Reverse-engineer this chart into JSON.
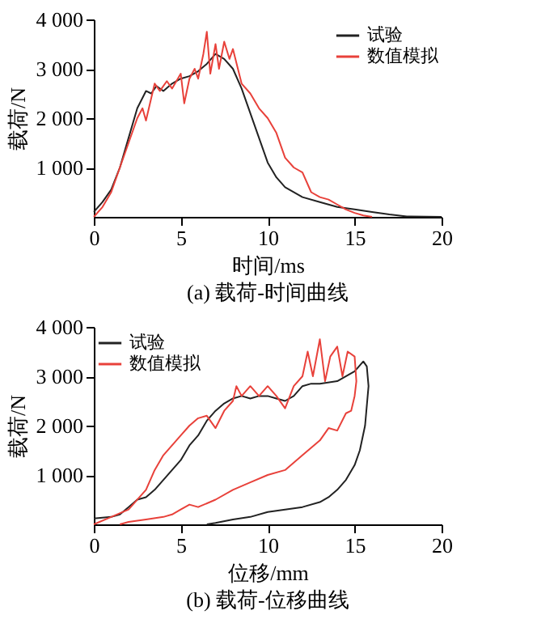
{
  "chart_data": [
    {
      "type": "line",
      "title": "(a) 载荷-时间曲线",
      "xlabel": "时间/ms",
      "ylabel": "载荷/N",
      "xlim": [
        0,
        20
      ],
      "xticks": [
        0,
        5,
        10,
        15,
        20
      ],
      "ylim": [
        0,
        4000
      ],
      "yticks": [
        {
          "value": 1000,
          "label": "1 000"
        },
        {
          "value": 2000,
          "label": "2 000"
        },
        {
          "value": 3000,
          "label": "3 000"
        },
        {
          "value": 4000,
          "label": "4 000"
        }
      ],
      "grid": false,
      "legend": "top right",
      "marker": "none",
      "line_style": "solid",
      "series": [
        {
          "name": "试验",
          "color": "#222222",
          "x": [
            0,
            0.5,
            1,
            1.5,
            2,
            2.5,
            3,
            3.3,
            3.6,
            4,
            4.5,
            5,
            5.5,
            6,
            6.5,
            7,
            7.5,
            8,
            8.5,
            9,
            9.5,
            10,
            10.5,
            11,
            12,
            13,
            14,
            15,
            16,
            17,
            18,
            20
          ],
          "values": [
            100,
            300,
            550,
            1000,
            1600,
            2200,
            2550,
            2500,
            2650,
            2550,
            2700,
            2800,
            2850,
            2950,
            3100,
            3300,
            3200,
            3000,
            2600,
            2100,
            1600,
            1100,
            800,
            600,
            400,
            300,
            200,
            150,
            100,
            50,
            10,
            0
          ]
        },
        {
          "name": "数值模拟",
          "color": "#e8413a",
          "x": [
            0,
            0.5,
            1,
            1.5,
            2,
            2.5,
            2.8,
            3,
            3.3,
            3.5,
            3.8,
            4.2,
            4.5,
            5,
            5.2,
            5.5,
            5.8,
            6,
            6.3,
            6.5,
            6.7,
            7,
            7.2,
            7.5,
            7.8,
            8,
            8.5,
            9,
            9.5,
            10,
            10.5,
            11,
            11.5,
            12,
            12.5,
            13,
            13.5,
            14,
            14.5,
            15,
            15.5,
            16
          ],
          "values": [
            0,
            200,
            500,
            1000,
            1500,
            2000,
            2200,
            1950,
            2400,
            2700,
            2550,
            2750,
            2600,
            2900,
            2300,
            2800,
            3000,
            2800,
            3300,
            3750,
            2900,
            3500,
            3000,
            3550,
            3200,
            3400,
            2700,
            2500,
            2200,
            2000,
            1700,
            1200,
            1000,
            900,
            500,
            400,
            350,
            250,
            150,
            80,
            30,
            0
          ]
        }
      ]
    },
    {
      "type": "line",
      "title": "(b) 载荷-位移曲线",
      "xlabel": "位移/mm",
      "ylabel": "载荷/N",
      "xlim": [
        0,
        20
      ],
      "xticks": [
        0,
        5,
        10,
        15,
        20
      ],
      "ylim": [
        0,
        4000
      ],
      "yticks": [
        {
          "value": 1000,
          "label": "1 000"
        },
        {
          "value": 2000,
          "label": "2 000"
        },
        {
          "value": 3000,
          "label": "3 000"
        },
        {
          "value": 4000,
          "label": "4 000"
        }
      ],
      "grid": false,
      "legend": "top left",
      "marker": "none",
      "line_style": "solid",
      "series": [
        {
          "name": "试验",
          "color": "#222222",
          "x": [
            0,
            1,
            1.5,
            2,
            2.5,
            3,
            3.5,
            4,
            4.5,
            5,
            5.5,
            6,
            6.5,
            7,
            7.5,
            8,
            8.5,
            9,
            9.5,
            10,
            10.5,
            11,
            11.5,
            12,
            12.5,
            13,
            14,
            15,
            15.5,
            15.7,
            15.8,
            15.6,
            15.3,
            15,
            14.5,
            14,
            13.5,
            13,
            12,
            11,
            10,
            9,
            8,
            7,
            6.5
          ],
          "values": [
            120,
            150,
            200,
            350,
            500,
            550,
            700,
            900,
            1100,
            1300,
            1600,
            1800,
            2100,
            2300,
            2450,
            2550,
            2600,
            2550,
            2600,
            2600,
            2550,
            2500,
            2600,
            2800,
            2850,
            2850,
            2900,
            3100,
            3300,
            3200,
            2800,
            2000,
            1500,
            1200,
            900,
            700,
            550,
            450,
            350,
            300,
            250,
            150,
            100,
            30,
            0
          ]
        },
        {
          "name": "数值模拟",
          "color": "#e8413a",
          "x": [
            0,
            1,
            2,
            3,
            3.5,
            4,
            5,
            5.5,
            6,
            6.5,
            7,
            7.5,
            8,
            8.2,
            8.5,
            9,
            9.5,
            10,
            10.5,
            11,
            11.5,
            12,
            12.3,
            12.6,
            13,
            13.3,
            13.6,
            14,
            14.3,
            14.6,
            15,
            15.1,
            15,
            14.8,
            14.5,
            14,
            13.5,
            13,
            12,
            11,
            10,
            9,
            8,
            7,
            6,
            5.5,
            5,
            4.5,
            4,
            3,
            2,
            1.5
          ],
          "values": [
            0,
            150,
            300,
            700,
            1100,
            1400,
            1800,
            2000,
            2150,
            2200,
            1950,
            2300,
            2500,
            2800,
            2600,
            2800,
            2600,
            2800,
            2600,
            2350,
            2800,
            3000,
            3500,
            3000,
            3750,
            2900,
            3400,
            3600,
            3000,
            3500,
            3400,
            2900,
            2600,
            2300,
            2250,
            1900,
            1950,
            1700,
            1400,
            1100,
            1000,
            850,
            700,
            500,
            350,
            400,
            300,
            200,
            150,
            100,
            50,
            0
          ]
        }
      ]
    }
  ]
}
